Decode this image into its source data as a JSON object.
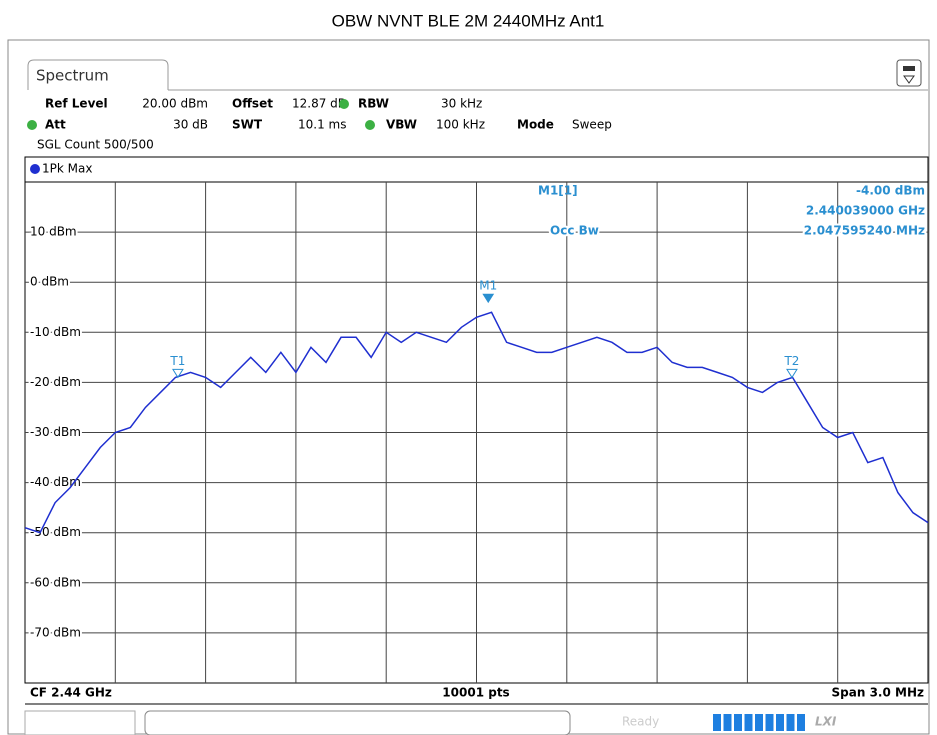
{
  "title": "OBW NVNT BLE 2M 2440MHz Ant1",
  "tab": "Spectrum",
  "settings": {
    "ref_level": {
      "label": "Ref Level",
      "value": "20.00 dBm"
    },
    "offset": {
      "label": "Offset",
      "value": "12.87 dB"
    },
    "rbw": {
      "label": "RBW",
      "value": "30 kHz"
    },
    "att": {
      "label": "Att",
      "value": "30 dB"
    },
    "swt": {
      "label": "SWT",
      "value": "10.1 ms"
    },
    "vbw": {
      "label": "VBW",
      "value": "100 kHz"
    },
    "mode": {
      "label": "Mode",
      "value": "Sweep"
    },
    "sgl_count": "SGL Count 500/500"
  },
  "trace_label": "1Pk Max",
  "marker_info": {
    "name": "M1[1]",
    "level": "-4.00 dBm",
    "freq": "2.440039000 GHz",
    "occ_label": "Occ Bw",
    "occ_value": "2.047595240 MHz"
  },
  "footer": {
    "cf": "CF 2.44 GHz",
    "points": "10001 pts",
    "span": "Span 3.0 MHz"
  },
  "status": "Ready",
  "chart_data": {
    "type": "line",
    "xlim": [
      2438.5,
      2441.5
    ],
    "ylim": [
      -80,
      20
    ],
    "yticks": [
      {
        "value": 10,
        "label": "10 dBm"
      },
      {
        "value": 0,
        "label": "0 dBm"
      },
      {
        "value": -10,
        "label": "-10 dBm"
      },
      {
        "value": -20,
        "label": "-20 dBm"
      },
      {
        "value": -30,
        "label": "-30 dBm"
      },
      {
        "value": -40,
        "label": "-40 dBm"
      },
      {
        "value": -50,
        "label": "-50 dBm"
      },
      {
        "value": -60,
        "label": "-60 dBm"
      },
      {
        "value": -70,
        "label": "-70 dBm"
      }
    ],
    "grid": true,
    "series": [
      {
        "name": "1Pk Max",
        "color": "#1f2fd0",
        "x": [
          2438.5,
          2438.55,
          2438.6,
          2438.65,
          2438.7,
          2438.75,
          2438.8,
          2438.85,
          2438.9,
          2438.95,
          2439.0,
          2439.05,
          2439.1,
          2439.15,
          2439.2,
          2439.25,
          2439.3,
          2439.35,
          2439.4,
          2439.45,
          2439.5,
          2439.55,
          2439.6,
          2439.65,
          2439.7,
          2439.75,
          2439.8,
          2439.85,
          2439.9,
          2439.95,
          2440.0,
          2440.05,
          2440.1,
          2440.15,
          2440.2,
          2440.25,
          2440.3,
          2440.35,
          2440.4,
          2440.45,
          2440.5,
          2440.55,
          2440.6,
          2440.65,
          2440.7,
          2440.75,
          2440.8,
          2440.85,
          2440.9,
          2440.95,
          2441.0,
          2441.05,
          2441.1,
          2441.15,
          2441.2,
          2441.25,
          2441.3,
          2441.35,
          2441.4,
          2441.45,
          2441.5
        ],
        "values": [
          -49,
          -50,
          -44,
          -41,
          -37,
          -33,
          -30,
          -29,
          -25,
          -22,
          -19,
          -18,
          -19,
          -21,
          -18,
          -15,
          -18,
          -14,
          -18,
          -13,
          -16,
          -11,
          -11,
          -15,
          -10,
          -12,
          -10,
          -11,
          -12,
          -9,
          -7,
          -6,
          -12,
          -13,
          -14,
          -14,
          -13,
          -12,
          -11,
          -12,
          -14,
          -14,
          -13,
          -16,
          -17,
          -17,
          -18,
          -19,
          -21,
          -22,
          -20,
          -19,
          -24,
          -29,
          -31,
          -30,
          -36,
          -35,
          -42,
          -46,
          -48
        ]
      }
    ],
    "markers": [
      {
        "name": "M1",
        "x": 2440.039,
        "y": -4
      },
      {
        "name": "T1",
        "x": 2439.008,
        "y": -19
      },
      {
        "name": "T2",
        "x": 2441.048,
        "y": -19
      }
    ],
    "marker_color": "#2a8fd0"
  }
}
